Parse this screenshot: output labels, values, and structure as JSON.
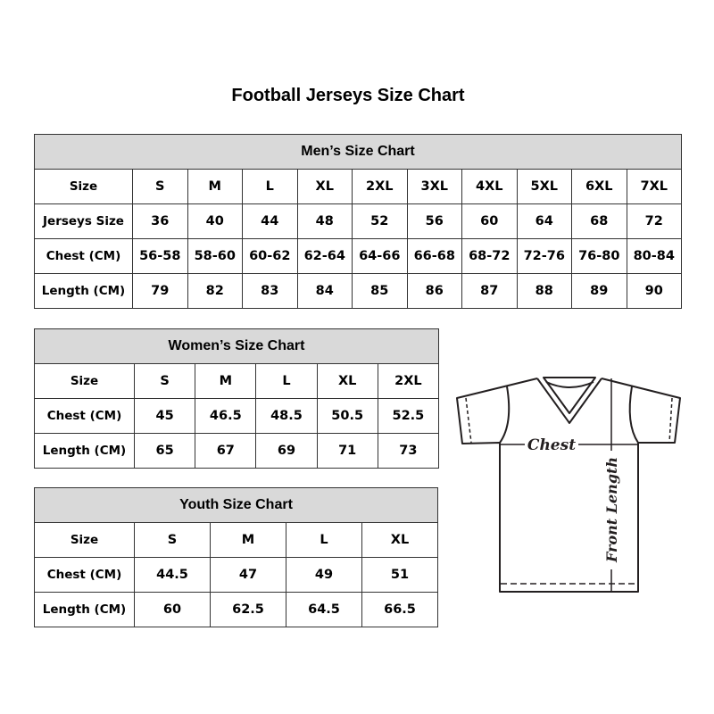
{
  "title": "Football Jerseys Size Chart",
  "men": {
    "heading": "Men’s Size Chart",
    "rows": [
      {
        "label": "Size",
        "values": [
          "S",
          "M",
          "L",
          "XL",
          "2XL",
          "3XL",
          "4XL",
          "5XL",
          "6XL",
          "7XL"
        ]
      },
      {
        "label": "Jerseys Size",
        "values": [
          "36",
          "40",
          "44",
          "48",
          "52",
          "56",
          "60",
          "64",
          "68",
          "72"
        ]
      },
      {
        "label": "Chest (CM)",
        "values": [
          "56-58",
          "58-60",
          "60-62",
          "62-64",
          "64-66",
          "66-68",
          "68-72",
          "72-76",
          "76-80",
          "80-84"
        ]
      },
      {
        "label": "Length (CM)",
        "values": [
          "79",
          "82",
          "83",
          "84",
          "85",
          "86",
          "87",
          "88",
          "89",
          "90"
        ]
      }
    ]
  },
  "women": {
    "heading": "Women’s Size Chart",
    "rows": [
      {
        "label": "Size",
        "values": [
          "S",
          "M",
          "L",
          "XL",
          "2XL"
        ]
      },
      {
        "label": "Chest (CM)",
        "values": [
          "45",
          "46.5",
          "48.5",
          "50.5",
          "52.5"
        ]
      },
      {
        "label": "Length (CM)",
        "values": [
          "65",
          "67",
          "69",
          "71",
          "73"
        ]
      }
    ]
  },
  "youth": {
    "heading": "Youth Size Chart",
    "rows": [
      {
        "label": "Size",
        "values": [
          "S",
          "M",
          "L",
          "XL"
        ]
      },
      {
        "label": "Chest (CM)",
        "values": [
          "44.5",
          "47",
          "49",
          "51"
        ]
      },
      {
        "label": "Length (CM)",
        "values": [
          "60",
          "62.5",
          "64.5",
          "66.5"
        ]
      }
    ]
  },
  "diagram": {
    "chest_label": "Chest",
    "length_label": "Front Length"
  },
  "colors": {
    "header_bg": "#d9d9d9",
    "border": "#333333",
    "outline": "#231f20"
  }
}
